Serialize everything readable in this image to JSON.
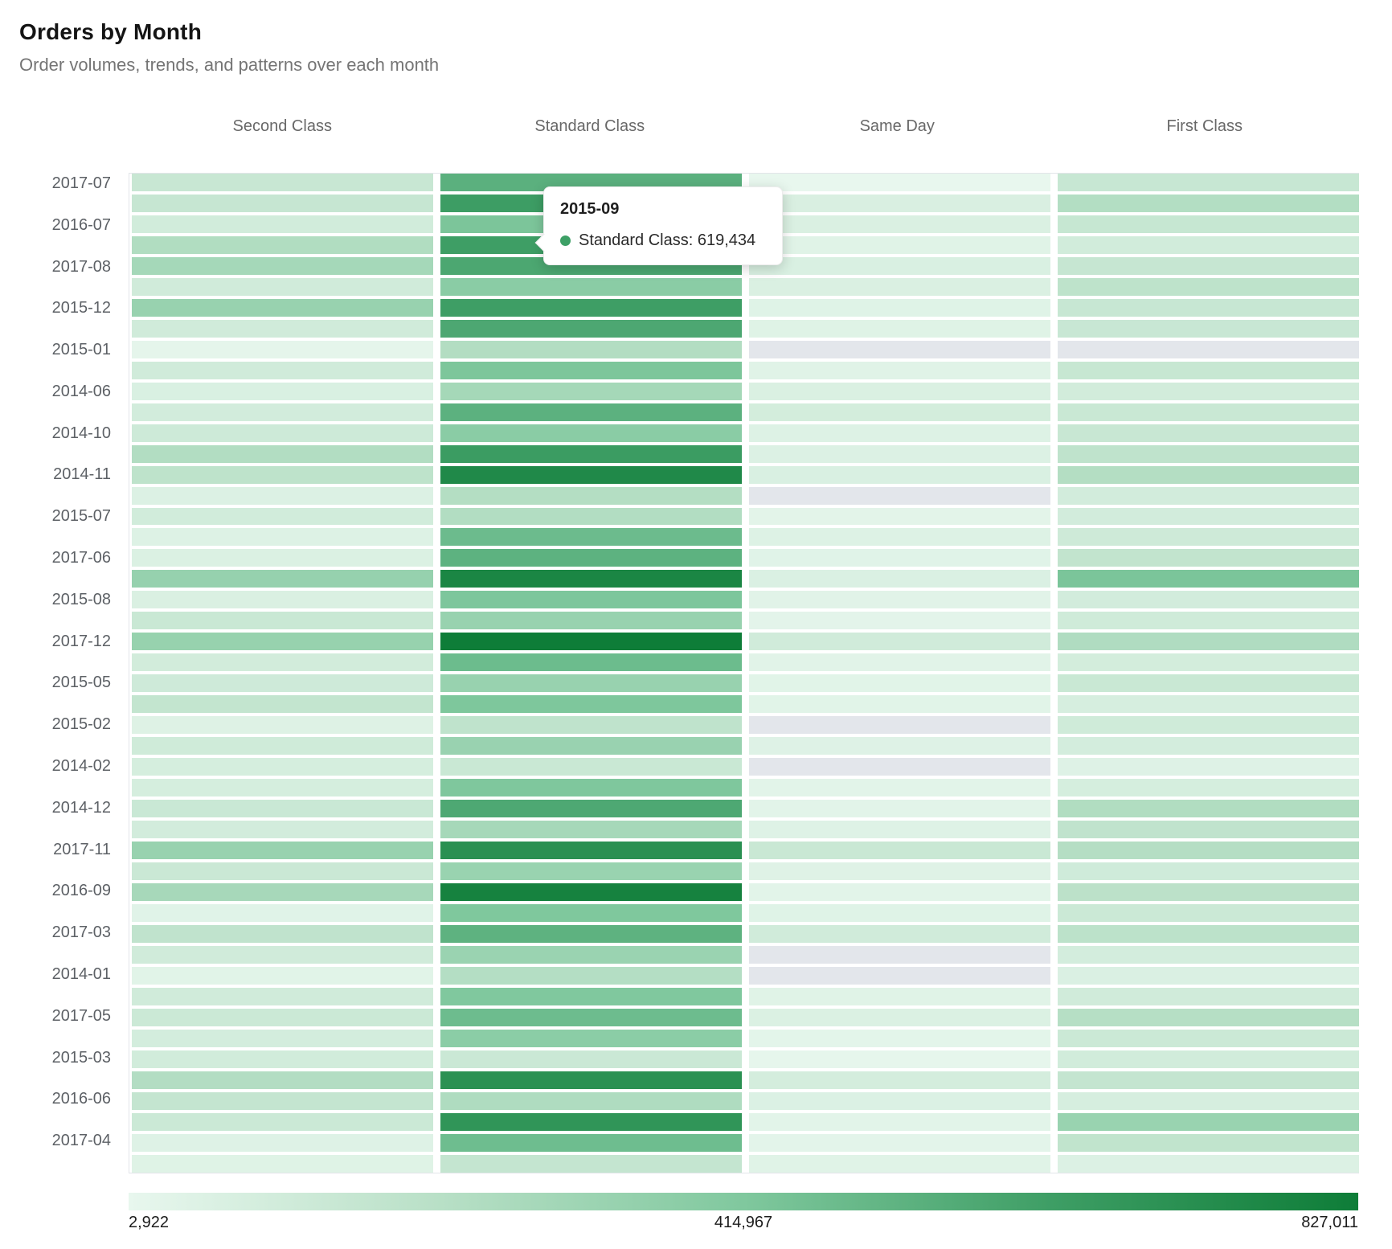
{
  "header": {
    "title": "Orders by Month",
    "subtitle": "Order volumes, trends, and patterns over each month"
  },
  "chart_data": {
    "type": "heatmap",
    "title": "Orders by Month",
    "subtitle": "Order volumes, trends, and patterns over each month",
    "x_categories": [
      "Second Class",
      "Standard Class",
      "Same Day",
      "First Class"
    ],
    "y_axis_note": "labels shown on alternate rows only",
    "rows": [
      {
        "label": "2017-07",
        "values": [
          144382,
          531905,
          2922,
          148103
        ]
      },
      {
        "label": "",
        "values": [
          152880,
          624209,
          70113,
          229856
        ]
      },
      {
        "label": "2016-07",
        "values": [
          103905,
          427711,
          66208,
          150472
        ]
      },
      {
        "label": "",
        "values": [
          237816,
          619434,
          39127,
          104228
        ]
      },
      {
        "label": "2017-08",
        "values": [
          280904,
          576801,
          68329,
          152214
        ]
      },
      {
        "label": "",
        "values": [
          106522,
          379605,
          64381,
          186240
        ]
      },
      {
        "label": "2015-12",
        "values": [
          329874,
          621990,
          41260,
          146808
        ]
      },
      {
        "label": "",
        "values": [
          108431,
          574512,
          43067,
          142380
        ]
      },
      {
        "label": "2015-01",
        "values": [
          16904,
          231755,
          null,
          null
        ]
      },
      {
        "label": "",
        "values": [
          110263,
          424871,
          38404,
          149026
        ]
      },
      {
        "label": "2014-06",
        "values": [
          67214,
          281903,
          64633,
          100921
        ]
      },
      {
        "label": "",
        "values": [
          99805,
          527634,
          96710,
          140733
        ]
      },
      {
        "label": "2014-10",
        "values": [
          120416,
          378924,
          51882,
          144629
        ]
      },
      {
        "label": "",
        "values": [
          234702,
          633208,
          54921,
          182647
        ]
      },
      {
        "label": "2014-11",
        "values": [
          185327,
          749811,
          68914,
          227509
        ]
      },
      {
        "label": "",
        "values": [
          53810,
          228636,
          null,
          99871
        ]
      },
      {
        "label": "2015-07",
        "values": [
          101922,
          235804,
          26733,
          98652
        ]
      },
      {
        "label": "",
        "values": [
          50936,
          477812,
          49705,
          116829
        ]
      },
      {
        "label": "2017-06",
        "values": [
          59834,
          524907,
          36918,
          170326
        ]
      },
      {
        "label": "",
        "values": [
          334615,
          769904,
          62847,
          429738
        ]
      },
      {
        "label": "2015-08",
        "values": [
          66109,
          423815,
          35706,
          97943
        ]
      },
      {
        "label": "",
        "values": [
          139928,
          329671,
          25814,
          114507
        ]
      },
      {
        "label": "2017-12",
        "values": [
          332507,
          827011,
          109633,
          239815
        ]
      },
      {
        "label": "",
        "values": [
          100814,
          476219,
          34928,
          96735
        ]
      },
      {
        "label": "2015-05",
        "values": [
          115906,
          327854,
          33815,
          138927
        ]
      },
      {
        "label": "",
        "values": [
          166823,
          420917,
          32906,
          83914
        ]
      },
      {
        "label": "2015-02",
        "values": [
          48812,
          181905,
          null,
          112836
        ]
      },
      {
        "label": "",
        "values": [
          113907,
          325618,
          47812,
          94927
        ]
      },
      {
        "label": "2014-02",
        "values": [
          86815,
          137926,
          null,
          46809
        ]
      },
      {
        "label": "",
        "values": [
          85904,
          418823,
          30917,
          85738
        ]
      },
      {
        "label": "2014-12",
        "values": [
          136829,
          569914,
          29806,
          238415
        ]
      },
      {
        "label": "",
        "values": [
          97816,
          277908,
          44913,
          178826
        ]
      },
      {
        "label": "2017-11",
        "values": [
          329918,
          707824,
          139507,
          224619
        ]
      },
      {
        "label": "",
        "values": [
          133826,
          323914,
          43806,
          110918
        ]
      },
      {
        "label": "2016-09",
        "values": [
          274913,
          792806,
          28915,
          195824
        ]
      },
      {
        "label": "",
        "values": [
          35917,
          416829,
          41906,
          131815
        ]
      },
      {
        "label": "2017-03",
        "values": [
          177824,
          521913,
          107826,
          193907
        ]
      },
      {
        "label": "",
        "values": [
          109915,
          321806,
          null,
          92824
        ]
      },
      {
        "label": "2014-01",
        "values": [
          33826,
          225917,
          null,
          62913
        ]
      },
      {
        "label": "",
        "values": [
          107806,
          413924,
          39815,
          106826
        ]
      },
      {
        "label": "2017-05",
        "values": [
          130917,
          472808,
          59913,
          218824
        ]
      },
      {
        "label": "",
        "values": [
          94826,
          374915,
          23806,
          127917
        ]
      },
      {
        "label": "2015-03",
        "values": [
          104913,
          134826,
          11904,
          103824
        ]
      },
      {
        "label": "",
        "values": [
          230826,
          703917,
          91806,
          162913
        ]
      },
      {
        "label": "2016-06",
        "values": [
          159915,
          244826,
          57917,
          79806
        ]
      },
      {
        "label": "",
        "values": [
          127913,
          679824,
          27915,
          324826
        ]
      },
      {
        "label": "2017-04",
        "values": [
          44806,
          469913,
          25824,
          174917
        ]
      },
      {
        "label": "",
        "values": [
          42913,
          161806,
          38924,
          55815
        ]
      }
    ],
    "value_min": 2922,
    "value_mid": 414967,
    "value_max": 827011,
    "legend_labels": {
      "min": "2,922",
      "mid": "414,967",
      "max": "827,011"
    },
    "color_scale": [
      "#e8f7ee",
      "#b9e0c7",
      "#80c89e",
      "#3e9e65",
      "#0e7d38"
    ],
    "no_data_color": "#e3e6eb",
    "tooltip": {
      "title": "2015-09",
      "series": "Standard Class",
      "value_label": "619,434",
      "text": "Standard Class: 619,434",
      "dot_color": "#3da066",
      "row_index": 3,
      "col_index": 1
    }
  }
}
